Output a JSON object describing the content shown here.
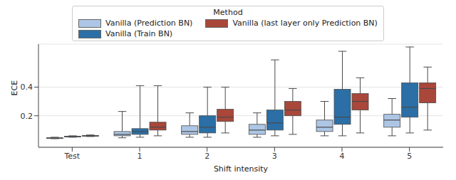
{
  "chart_data": {
    "type": "box",
    "ylabel": "ECE",
    "xlabel": "Shift intensity",
    "legend_title": "Method",
    "legend": "upper center",
    "grid": true,
    "categories": [
      "Test",
      "1",
      "2",
      "3",
      "4",
      "5"
    ],
    "ylim": [
      -0.02,
      0.7
    ],
    "yticks": [
      0.2,
      0.4
    ],
    "series": [
      {
        "name": "Vanilla (Prediction BN)",
        "color": "#adc6e5",
        "min": [
          0.04,
          0.046,
          0.05,
          0.05,
          0.06,
          0.06
        ],
        "q1": [
          0.044,
          0.06,
          0.07,
          0.07,
          0.09,
          0.12
        ],
        "median": [
          0.045,
          0.07,
          0.09,
          0.1,
          0.12,
          0.17
        ],
        "q3": [
          0.046,
          0.09,
          0.13,
          0.14,
          0.17,
          0.21
        ],
        "max": [
          0.05,
          0.23,
          0.22,
          0.22,
          0.3,
          0.32
        ]
      },
      {
        "name": "Vanilla (Train BN)",
        "color": "#2b6fa6",
        "min": [
          0.05,
          0.05,
          0.05,
          0.06,
          0.06,
          0.08
        ],
        "q1": [
          0.053,
          0.07,
          0.08,
          0.1,
          0.14,
          0.19
        ],
        "median": [
          0.055,
          0.09,
          0.12,
          0.15,
          0.19,
          0.26
        ],
        "q3": [
          0.057,
          0.11,
          0.2,
          0.24,
          0.385,
          0.43
        ],
        "max": [
          0.06,
          0.41,
          0.4,
          0.59,
          0.65,
          0.68
        ]
      },
      {
        "name": "Vanilla (last layer only Prediction BN)",
        "color": "#a8473a",
        "min": [
          0.055,
          0.06,
          0.08,
          0.07,
          0.08,
          0.1
        ],
        "q1": [
          0.058,
          0.1,
          0.16,
          0.2,
          0.24,
          0.29
        ],
        "median": [
          0.06,
          0.12,
          0.19,
          0.24,
          0.3,
          0.39
        ],
        "q3": [
          0.062,
          0.155,
          0.245,
          0.3,
          0.355,
          0.43
        ],
        "max": [
          0.066,
          0.41,
          0.4,
          0.39,
          0.465,
          0.54
        ]
      }
    ]
  }
}
